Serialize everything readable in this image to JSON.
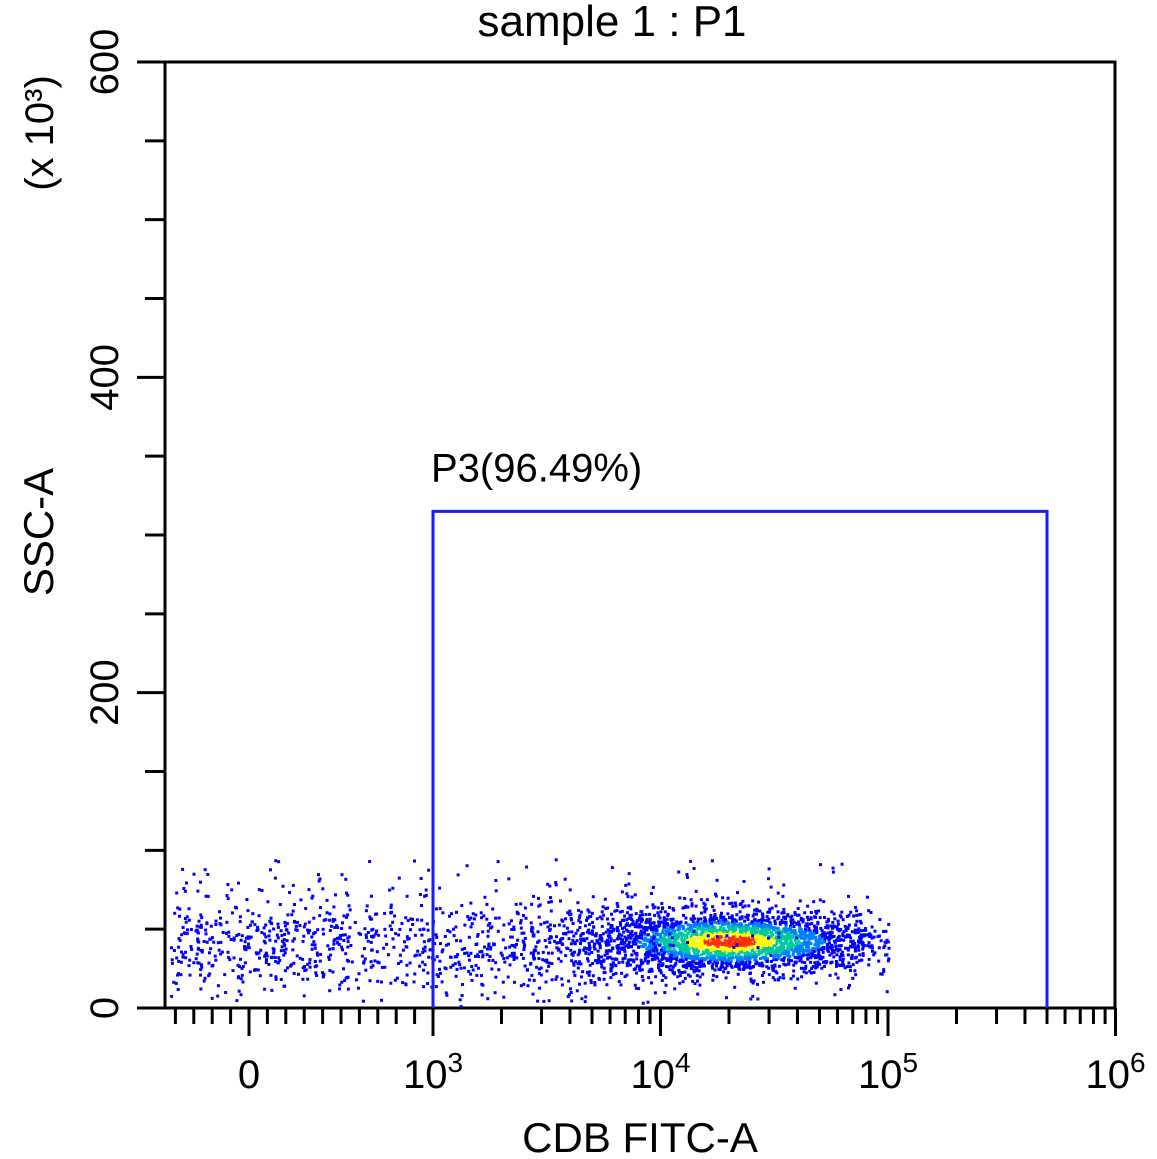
{
  "chart_data": {
    "type": "scatter",
    "title": "sample 1 : P1",
    "xlabel": "CDB FITC-A",
    "ylabel": "SSC-A",
    "y_multiplier_label": "(x 10³)",
    "x_scale": "biexponential (log)",
    "xlim": [
      -400,
      1000000
    ],
    "ylim": [
      0,
      600
    ],
    "x_tick_labels": [
      {
        "value": 0,
        "base": "0",
        "exp": ""
      },
      {
        "value": 1000,
        "base": "10",
        "exp": "3"
      },
      {
        "value": 10000,
        "base": "10",
        "exp": "4"
      },
      {
        "value": 100000,
        "base": "10",
        "exp": "5"
      },
      {
        "value": 1000000,
        "base": "10",
        "exp": "6"
      }
    ],
    "y_ticks": [
      0,
      200,
      400,
      600
    ],
    "y_tick_labels": [
      "0",
      "200",
      "400",
      "600"
    ],
    "gate": {
      "name": "P3",
      "label": "P3(96.49%)",
      "percent": 96.49,
      "x_range": [
        1000,
        500000
      ],
      "y_range": [
        0,
        315
      ]
    },
    "population": {
      "main_cluster": {
        "x_center": 20000,
        "y_center": 43
      },
      "x_extent": [
        -400,
        100000
      ],
      "y_extent": [
        0,
        110
      ]
    },
    "grid": false,
    "legend": "none",
    "colors": {
      "gate": "#1a1aff",
      "density_low": "#0000ff",
      "density_mid": "#00c8a0",
      "density_high": "#ffff00",
      "density_peak": "#ff3000"
    }
  }
}
